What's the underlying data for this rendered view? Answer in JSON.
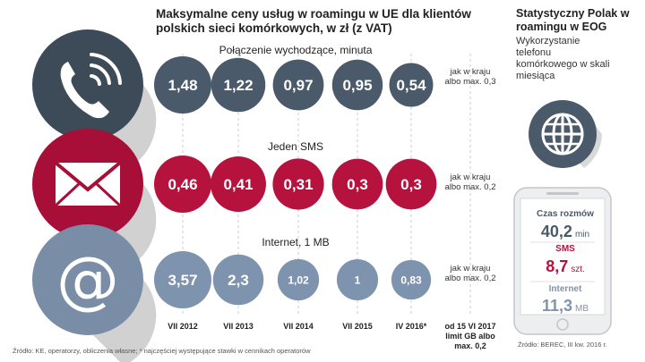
{
  "title": "Maksymalne ceny usług w roamingu w UE dla klientów polskich sieci komórkowych, w zł (z VAT)",
  "side": {
    "title": "Statystyczny Polak w roamingu w EOG",
    "subtitle": "Wykorzystanie telefonu komórkowego w skali miesiąca",
    "stats": [
      {
        "label": "Czas rozmów",
        "value": "40,2",
        "unit": "min",
        "color": "#4a5a6a"
      },
      {
        "label": "SMS",
        "value": "8,7",
        "unit": "szt.",
        "color": "#b5123e"
      },
      {
        "label": "Internet",
        "value": "11,3",
        "unit": "MB",
        "color": "#7e93ad"
      }
    ]
  },
  "colors": {
    "calls": "#4a5a6a",
    "sms": "#b5123e",
    "internet": "#7e93ad",
    "icon_bg_calls": "#3d4a58",
    "icon_bg_sms": "#a80f38",
    "icon_bg_internet": "#7a8da6"
  },
  "chart_data": {
    "type": "bubble",
    "categories": [
      "VII 2012",
      "VII 2013",
      "VII 2014",
      "VII 2015",
      "IV 2016*"
    ],
    "final_category": "od 15 VI 2017 limit GB albo max. 0,2",
    "series": [
      {
        "name": "Połączenie wychodzące, minuta",
        "icon": "phone-icon",
        "values": [
          1.48,
          1.22,
          0.97,
          0.95,
          0.54
        ],
        "labels": [
          "1,48",
          "1,22",
          "0,97",
          "0,95",
          "0,54"
        ],
        "final_note": "jak w kraju albo max. 0,3"
      },
      {
        "name": "Jeden SMS",
        "icon": "envelope-icon",
        "values": [
          0.46,
          0.41,
          0.31,
          0.3,
          0.3
        ],
        "labels": [
          "0,46",
          "0,41",
          "0,31",
          "0,3",
          "0,3"
        ],
        "final_note": "jak w kraju albo max. 0,2"
      },
      {
        "name": "Internet, 1 MB",
        "icon": "at-sign-icon",
        "values": [
          3.57,
          2.3,
          1.02,
          1.0,
          0.83
        ],
        "labels": [
          "3,57",
          "2,3",
          "1,02",
          "1",
          "0,83"
        ],
        "final_note": "jak w kraju albo max. 0,2"
      }
    ]
  },
  "footer": {
    "source_left": "Źródło: KE, operatorzy, obliczenia własne; * najczęściej występujące stawki w cennikach operatorów",
    "source_right": "Źródło: BEREC, III kw. 2016 r."
  }
}
